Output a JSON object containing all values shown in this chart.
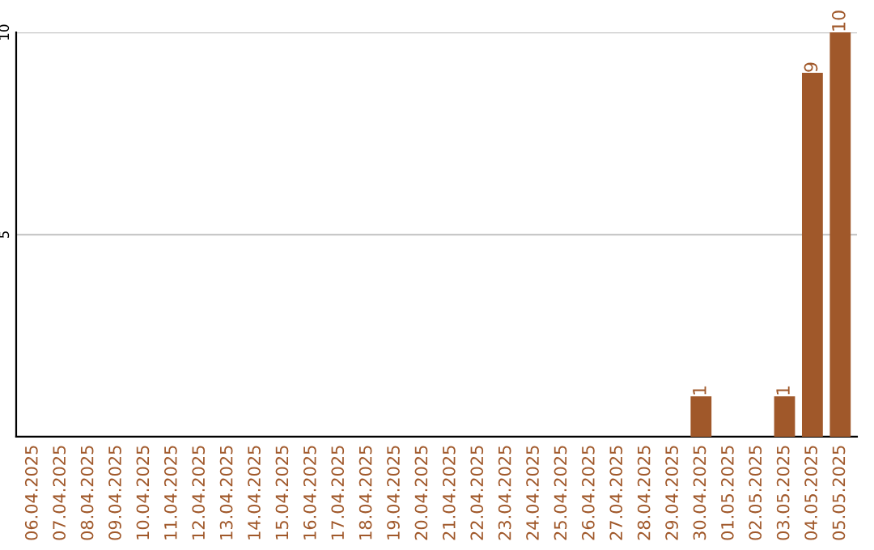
{
  "chart_data": {
    "type": "bar",
    "categories": [
      "06.04.2025",
      "07.04.2025",
      "08.04.2025",
      "09.04.2025",
      "10.04.2025",
      "11.04.2025",
      "12.04.2025",
      "13.04.2025",
      "14.04.2025",
      "15.04.2025",
      "16.04.2025",
      "17.04.2025",
      "18.04.2025",
      "19.04.2025",
      "20.04.2025",
      "21.04.2025",
      "22.04.2025",
      "23.04.2025",
      "24.04.2025",
      "25.04.2025",
      "26.04.2025",
      "27.04.2025",
      "28.04.2025",
      "29.04.2025",
      "30.04.2025",
      "01.05.2025",
      "02.05.2025",
      "03.05.2025",
      "04.05.2025",
      "05.05.2025"
    ],
    "values": [
      0,
      0,
      0,
      0,
      0,
      0,
      0,
      0,
      0,
      0,
      0,
      0,
      0,
      0,
      0,
      0,
      0,
      0,
      0,
      0,
      0,
      0,
      0,
      0,
      1,
      0,
      0,
      1,
      9,
      10
    ],
    "value_labels": [
      null,
      null,
      null,
      null,
      null,
      null,
      null,
      null,
      null,
      null,
      null,
      null,
      null,
      null,
      null,
      null,
      null,
      null,
      null,
      null,
      null,
      null,
      null,
      null,
      "1",
      null,
      null,
      "1",
      "9",
      "10"
    ],
    "color": "#a0582a",
    "ylim": [
      0,
      10
    ],
    "yticks": [
      5,
      10
    ],
    "grid": "y"
  }
}
